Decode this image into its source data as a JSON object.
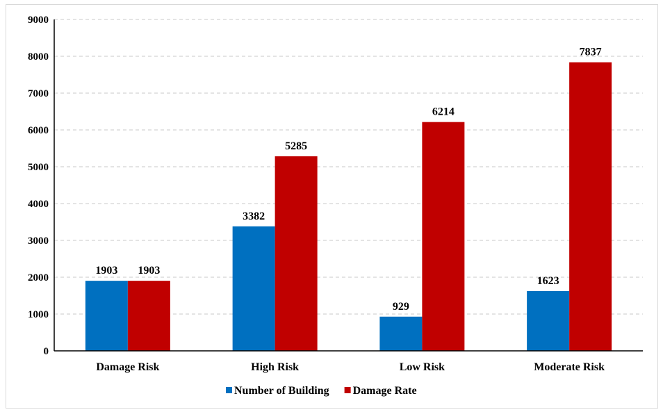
{
  "chart_data": {
    "type": "bar",
    "categories": [
      "Damage Risk",
      "High Risk",
      "Low Risk",
      "Moderate Risk"
    ],
    "series": [
      {
        "name": "Number of Building",
        "values": [
          1903,
          3382,
          929,
          1623
        ],
        "color": "#0070c0"
      },
      {
        "name": "Damage Rate",
        "values": [
          1903,
          5285,
          6214,
          7837
        ],
        "color": "#c00000"
      }
    ],
    "yticks": [
      "0",
      "1000",
      "2000",
      "3000",
      "4000",
      "5000",
      "6000",
      "7000",
      "8000",
      "9000"
    ],
    "ylim": [
      0,
      9000
    ],
    "grid": true,
    "legend_position": "bottom"
  }
}
